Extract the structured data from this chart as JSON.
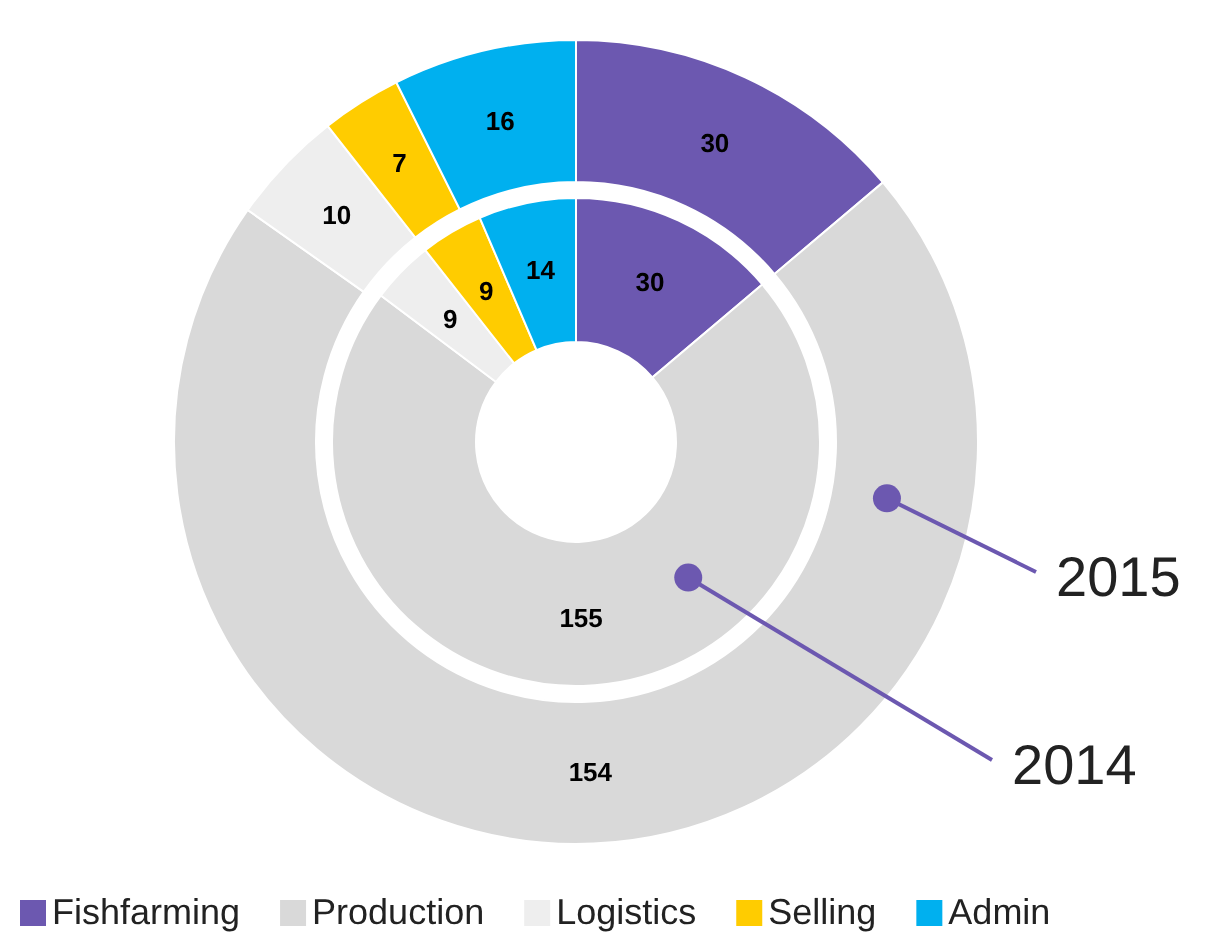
{
  "chart_data": {
    "type": "donut",
    "categories": [
      "Fishfarming",
      "Production",
      "Logistics",
      "Selling",
      "Admin"
    ],
    "colors": [
      "#6c58b0",
      "#d9d9d9",
      "#eeeeee",
      "#ffcc00",
      "#00b0ef"
    ],
    "series": [
      {
        "name": "2015",
        "values": [
          30,
          154,
          10,
          7,
          16
        ]
      },
      {
        "name": "2014",
        "values": [
          30,
          155,
          9,
          9,
          14
        ]
      }
    ],
    "data_labels": true,
    "legend": "bottom"
  }
}
